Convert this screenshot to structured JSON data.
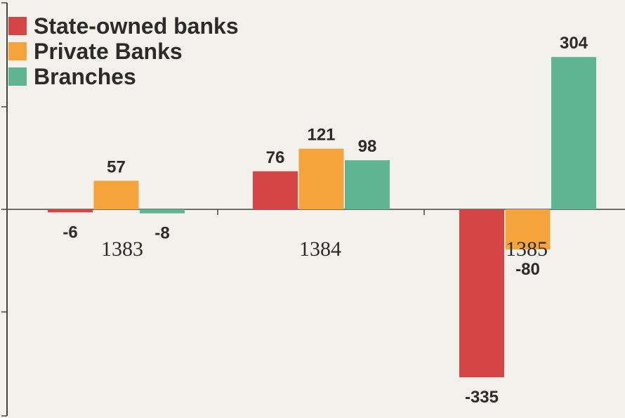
{
  "chart_data": {
    "type": "bar",
    "categories": [
      "1383",
      "1384",
      "1385"
    ],
    "series": [
      {
        "name": "State-owned banks",
        "color": "#d64545",
        "values": [
          -6,
          76,
          -335
        ]
      },
      {
        "name": "Private Banks",
        "color": "#f4a43a",
        "values": [
          57,
          121,
          -80
        ]
      },
      {
        "name": "Branches",
        "color": "#5fb592",
        "values": [
          -8,
          98,
          304
        ]
      }
    ],
    "data_labels": [
      [
        "-6",
        "76",
        "-335"
      ],
      [
        "57",
        "121",
        "-80"
      ],
      [
        "-8",
        "98",
        "304"
      ]
    ],
    "ylim": [
      -380,
      390
    ],
    "legend_position": "top-left",
    "grid": false
  }
}
